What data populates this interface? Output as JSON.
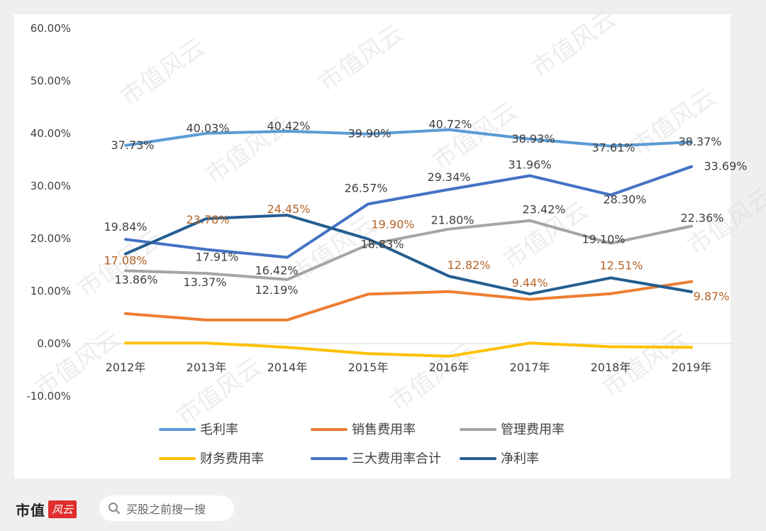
{
  "chart_data": {
    "type": "line",
    "categories": [
      "2012年",
      "2013年",
      "2014年",
      "2015年",
      "2016年",
      "2017年",
      "2018年",
      "2019年"
    ],
    "ylim": [
      -10,
      60
    ],
    "yticks": [
      60,
      50,
      40,
      30,
      20,
      10,
      0,
      -10
    ],
    "ytick_labels": [
      "60.00%",
      "50.00%",
      "40.00%",
      "30.00%",
      "20.00%",
      "10.00%",
      "0.00%",
      "-10.00%"
    ],
    "series": [
      {
        "name": "毛利率",
        "color": "#5b9bd5",
        "values": [
          37.73,
          40.03,
          40.42,
          39.9,
          40.72,
          38.93,
          37.61,
          38.37
        ],
        "labels": [
          "37.73%",
          "40.03%",
          "40.42%",
          "39.90%",
          "40.72%",
          "38.93%",
          "37.61%",
          "38.37%"
        ],
        "label_color": "#404040"
      },
      {
        "name": "销售费用率",
        "color": "#ed7d31",
        "values": [
          5.7,
          4.5,
          4.5,
          9.4,
          9.9,
          8.4,
          9.5,
          11.8
        ]
      },
      {
        "name": "管理费用率",
        "color": "#a5a5a5",
        "values": [
          13.86,
          13.37,
          12.19,
          18.83,
          21.8,
          23.42,
          19.1,
          22.36
        ],
        "labels": [
          "13.86%",
          "13.37%",
          "12.19%",
          "18.83%",
          "21.80%",
          "23.42%",
          "19.10%",
          "22.36%"
        ],
        "label_color": "#404040"
      },
      {
        "name": "财务费用率",
        "color": "#ffc000",
        "values": [
          0.1,
          0.1,
          -0.7,
          -1.9,
          -2.4,
          0.1,
          -0.6,
          -0.7
        ]
      },
      {
        "name": "三大费用率合计",
        "color": "#4472c4",
        "values": [
          19.84,
          17.91,
          16.42,
          26.57,
          29.34,
          31.96,
          28.3,
          33.69
        ],
        "labels": [
          "19.84%",
          "17.91%",
          "16.42%",
          "26.57%",
          "29.34%",
          "31.96%",
          "28.30%",
          "33.69%"
        ],
        "label_color": "#404040"
      },
      {
        "name": "净利率",
        "color": "#255e91",
        "values": [
          17.08,
          23.78,
          24.45,
          19.9,
          12.82,
          9.44,
          12.51,
          9.87
        ],
        "labels": [
          "17.08%",
          "23.78%",
          "24.45%",
          "19.90%",
          "12.82%",
          "9.44%",
          "12.51%",
          "9.87%"
        ],
        "label_color": "#b5642a"
      }
    ],
    "legend": [
      "毛利率",
      "销售费用率",
      "管理费用率",
      "财务费用率",
      "三大费用率合计",
      "净利率"
    ],
    "legend_position": "bottom"
  },
  "watermark": "市值风云",
  "footer": {
    "brand_name": "市值",
    "brand_seal": "风云",
    "search_placeholder": "买股之前搜一搜"
  }
}
